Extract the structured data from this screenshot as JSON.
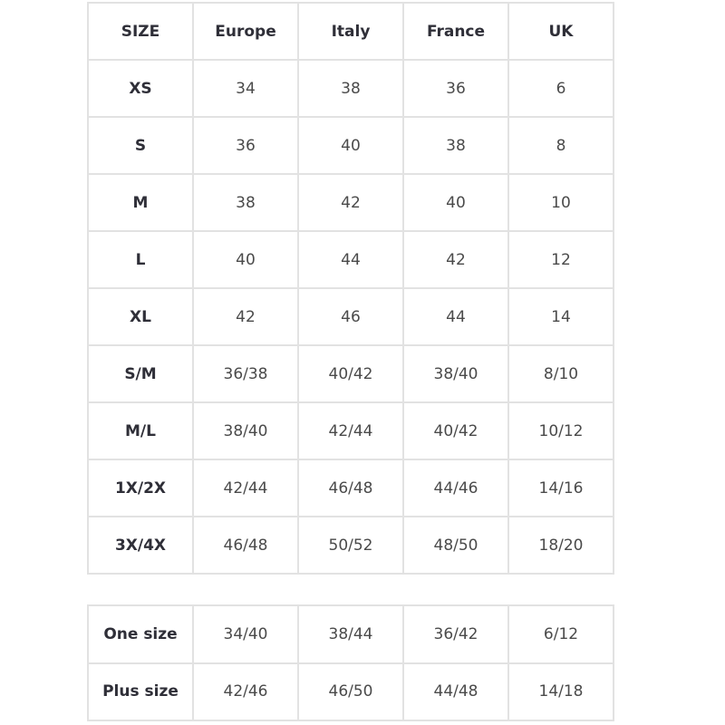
{
  "main_table": {
    "headers": [
      "SIZE",
      "Europe",
      "Italy",
      "France",
      "UK"
    ],
    "rows": [
      [
        "XS",
        "34",
        "38",
        "36",
        "6"
      ],
      [
        "S",
        "36",
        "40",
        "38",
        "8"
      ],
      [
        "M",
        "38",
        "42",
        "40",
        "10"
      ],
      [
        "L",
        "40",
        "44",
        "42",
        "12"
      ],
      [
        "XL",
        "42",
        "46",
        "44",
        "14"
      ],
      [
        "S/M",
        "36/38",
        "40/42",
        "38/40",
        "8/10"
      ],
      [
        "M/L",
        "38/40",
        "42/44",
        "40/42",
        "10/12"
      ],
      [
        "1X/2X",
        "42/44",
        "46/48",
        "44/46",
        "14/16"
      ],
      [
        "3X/4X",
        "46/48",
        "50/52",
        "48/50",
        "18/20"
      ]
    ]
  },
  "extra_table": {
    "rows": [
      [
        "One size",
        "34/40",
        "38/44",
        "36/42",
        "6/12"
      ],
      [
        "Plus size",
        "42/46",
        "46/50",
        "44/48",
        "14/18"
      ]
    ]
  },
  "colors": {
    "border": "#e2e2e2",
    "text": "#4a4a4a",
    "heading_text": "#2f2f38"
  }
}
